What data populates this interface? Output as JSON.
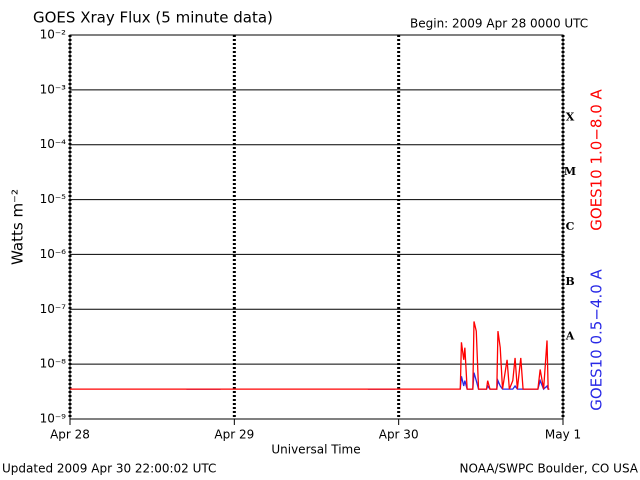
{
  "chart_data": {
    "type": "line",
    "title": "GOES Xray Flux (5 minute data)",
    "subtitle": "Begin:  2009 Apr 28 0000 UTC",
    "x_label": "Universal Time",
    "y_label": "Watts m⁻²",
    "footer_left": "Updated 2009 Apr 30 22:00:02 UTC",
    "footer_right": "NOAA/SWPC Boulder, CO USA",
    "log_scale": true,
    "grid": true,
    "legend": "right",
    "ylim": [
      1e-09,
      0.01
    ],
    "yticks": [
      {
        "value": 1e-09,
        "label": "10⁻⁹"
      },
      {
        "value": 1e-08,
        "label": "10⁻⁸"
      },
      {
        "value": 1e-07,
        "label": "10⁻⁷"
      },
      {
        "value": 1e-06,
        "label": "10⁻⁶"
      },
      {
        "value": 1e-05,
        "label": "10⁻⁵"
      },
      {
        "value": 0.0001,
        "label": "10⁻⁴"
      },
      {
        "value": 0.001,
        "label": "10⁻³"
      },
      {
        "value": 0.01,
        "label": "10⁻²"
      }
    ],
    "xlim": [
      "2009-04-28 00:00",
      "2009-05-01 00:00"
    ],
    "xticks": [
      {
        "value": "2009-04-28 00:00",
        "label": "Apr 28"
      },
      {
        "value": "2009-04-29 00:00",
        "label": "Apr 29"
      },
      {
        "value": "2009-04-30 00:00",
        "label": "Apr 30"
      },
      {
        "value": "2009-05-01 00:00",
        "label": "May 1"
      }
    ],
    "flare_classes": [
      {
        "label": "A",
        "value": 1e-08
      },
      {
        "label": "B",
        "value": 1e-07
      },
      {
        "label": "C",
        "value": 1e-06
      },
      {
        "label": "M",
        "value": 1e-05
      },
      {
        "label": "X",
        "value": 0.0001
      }
    ],
    "x": [
      "2009-04-28 00:00",
      "2009-04-28 17:00",
      "2009-04-28 22:00",
      "2009-04-28 22:05",
      "2009-04-29 19:30",
      "2009-04-29 23:30",
      "2009-04-29 23:35",
      "2009-04-30 09:00",
      "2009-04-30 09:10",
      "2009-04-30 09:30",
      "2009-04-30 09:40",
      "2009-04-30 10:00",
      "2009-04-30 10:50",
      "2009-04-30 11:00",
      "2009-04-30 11:20",
      "2009-04-30 11:40",
      "2009-04-30 12:50",
      "2009-04-30 13:00",
      "2009-04-30 13:20",
      "2009-04-30 14:20",
      "2009-04-30 14:30",
      "2009-04-30 14:50",
      "2009-04-30 15:10",
      "2009-04-30 15:50",
      "2009-04-30 16:10",
      "2009-04-30 16:40",
      "2009-04-30 17:00",
      "2009-04-30 17:20",
      "2009-04-30 17:50",
      "2009-04-30 18:10",
      "2009-04-30 20:20",
      "2009-04-30 20:40",
      "2009-04-30 21:10",
      "2009-04-30 21:40",
      "2009-04-30 21:50",
      "2009-04-30 22:00"
    ],
    "series": [
      {
        "name": "GOES10 0.5−4.0 A",
        "color": "#2828e6",
        "values": [
          null,
          3.5e-09,
          3.5e-09,
          null,
          3.5e-09,
          3.5e-09,
          null,
          3.5e-09,
          6e-09,
          4e-09,
          5e-09,
          3.5e-09,
          3.5e-09,
          7e-09,
          5e-09,
          3.5e-09,
          3.5e-09,
          4e-09,
          3.5e-09,
          3.5e-09,
          5e-09,
          4e-09,
          3.5e-09,
          3.5e-09,
          3.5e-09,
          3.5e-09,
          4e-09,
          3.5e-09,
          3.5e-09,
          3.5e-09,
          3.5e-09,
          5e-09,
          3.5e-09,
          4e-09,
          3.5e-09,
          3.5e-09
        ]
      },
      {
        "name": "GOES10 1.0−8.0 A",
        "color": "#ff0000",
        "values": [
          3.5e-09,
          3.5e-09,
          3.5e-09,
          3.5e-09,
          3.5e-09,
          3.5e-09,
          3.5e-09,
          3.5e-09,
          2.5e-08,
          1.2e-08,
          2e-08,
          3.5e-09,
          3.5e-09,
          6e-08,
          4e-08,
          3.5e-09,
          3.5e-09,
          5e-09,
          3.5e-09,
          3.5e-09,
          4e-08,
          2e-08,
          3.5e-09,
          1.2e-08,
          3.5e-09,
          5e-09,
          1.3e-08,
          3.5e-09,
          1.3e-08,
          3.5e-09,
          3.5e-09,
          8e-09,
          3.5e-09,
          2.7e-08,
          3.5e-09,
          3.5e-09
        ]
      }
    ]
  }
}
